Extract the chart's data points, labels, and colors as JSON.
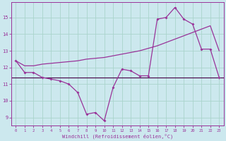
{
  "xlabel": "Windchill (Refroidissement éolien,°C)",
  "background_color": "#cce8ee",
  "grid_color": "#aad4cc",
  "line_color": "#993399",
  "hline_color": "#440044",
  "x_data": [
    0,
    1,
    2,
    3,
    4,
    5,
    6,
    7,
    8,
    9,
    10,
    11,
    12,
    13,
    14,
    15,
    16,
    17,
    18,
    19,
    20,
    21,
    22,
    23
  ],
  "y_jagged": [
    12.4,
    11.7,
    11.7,
    11.4,
    11.3,
    11.2,
    11.0,
    10.5,
    9.2,
    9.3,
    8.8,
    10.8,
    11.9,
    11.8,
    11.5,
    11.5,
    14.9,
    15.0,
    15.6,
    14.9,
    14.6,
    13.1,
    13.1,
    11.4
  ],
  "y_smooth": [
    12.4,
    12.1,
    12.1,
    12.2,
    12.25,
    12.3,
    12.35,
    12.4,
    12.5,
    12.55,
    12.6,
    12.7,
    12.8,
    12.9,
    13.0,
    13.15,
    13.3,
    13.5,
    13.7,
    13.9,
    14.1,
    14.3,
    14.5,
    13.0
  ],
  "y_hline": 11.4,
  "ylim": [
    8.5,
    15.9
  ],
  "yticks": [
    9,
    10,
    11,
    12,
    13,
    14,
    15
  ],
  "xlim": [
    -0.5,
    23.5
  ],
  "xticks": [
    0,
    1,
    2,
    3,
    4,
    5,
    6,
    7,
    8,
    9,
    10,
    11,
    12,
    13,
    14,
    15,
    16,
    17,
    18,
    19,
    20,
    21,
    22,
    23
  ]
}
